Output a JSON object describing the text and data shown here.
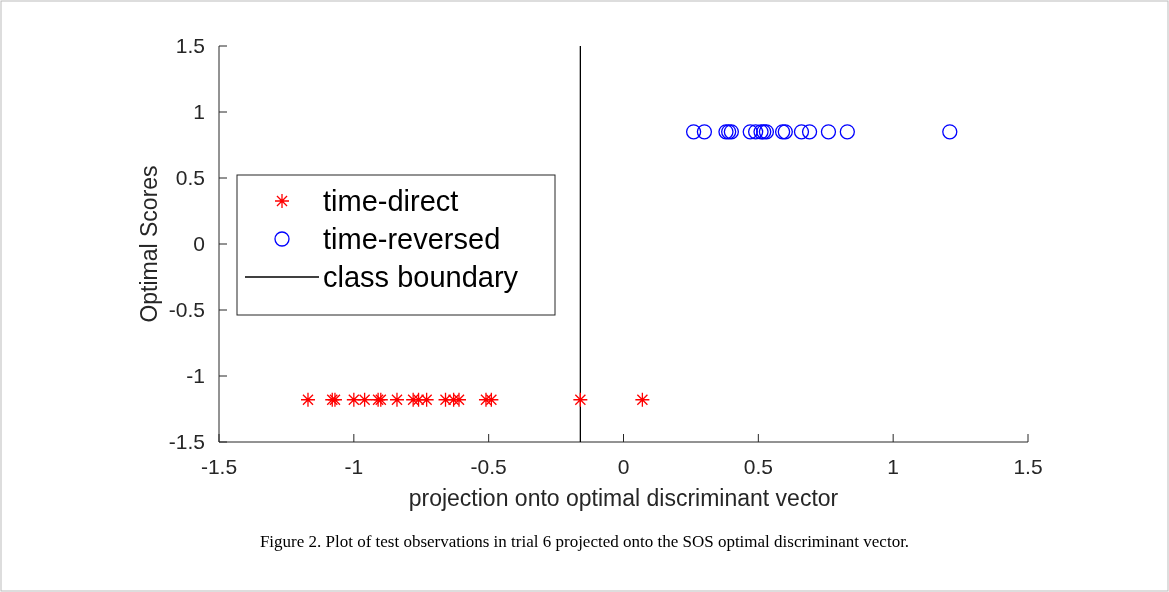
{
  "chart_data": {
    "type": "scatter",
    "xlabel": "projection onto optimal discriminant vector",
    "ylabel": "Optimal Scores",
    "xlim": [
      -1.5,
      1.5
    ],
    "ylim": [
      -1.5,
      1.5
    ],
    "xticks": [
      -1.5,
      -1,
      -0.5,
      0,
      0.5,
      1,
      1.5
    ],
    "yticks": [
      -1.5,
      -1,
      -0.5,
      0,
      0.5,
      1,
      1.5
    ],
    "series": [
      {
        "name": "time-direct",
        "color": "#ff0000",
        "marker": "cross",
        "x": [
          -1.17,
          -1.08,
          -1.07,
          -1.0,
          -0.96,
          -0.91,
          -0.9,
          -0.84,
          -0.78,
          -0.76,
          -0.73,
          -0.66,
          -0.63,
          -0.61,
          -0.51,
          -0.49,
          -0.16,
          0.07
        ],
        "values": [
          -1.18,
          -1.18,
          -1.18,
          -1.18,
          -1.18,
          -1.18,
          -1.18,
          -1.18,
          -1.18,
          -1.18,
          -1.18,
          -1.18,
          -1.18,
          -1.18,
          -1.18,
          -1.18,
          -1.18,
          -1.18
        ]
      },
      {
        "name": "time-reversed",
        "color": "#0000ff",
        "marker": "circle",
        "x": [
          0.26,
          0.3,
          0.38,
          0.39,
          0.4,
          0.47,
          0.49,
          0.51,
          0.52,
          0.53,
          0.59,
          0.6,
          0.66,
          0.69,
          0.76,
          0.83,
          1.21
        ],
        "values": [
          0.85,
          0.85,
          0.85,
          0.85,
          0.85,
          0.85,
          0.85,
          0.85,
          0.85,
          0.85,
          0.85,
          0.85,
          0.85,
          0.85,
          0.85,
          0.85,
          0.85
        ]
      }
    ],
    "ref_lines": [
      {
        "axis": "x",
        "value": -0.16,
        "label": "class boundary",
        "color": "#000000"
      }
    ],
    "legend": "left",
    "annotations": [
      "Figure 2. Plot of test observations in trial 6 projected onto the SOS optimal discriminant vector."
    ]
  }
}
